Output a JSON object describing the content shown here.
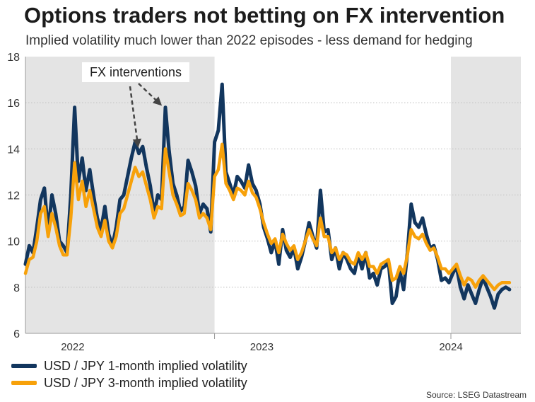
{
  "title": "Options traders not betting on FX intervention",
  "subtitle": "Implied volatility much lower than 2022 episodes - less demand for hedging",
  "source": "Source: LSEG Datastream",
  "colors": {
    "series1": "#12365e",
    "series2": "#f7a10a",
    "shade": "#e4e4e4",
    "grid": "#bdbdbd",
    "axis": "#999999",
    "annotation_arrow": "#444444"
  },
  "legend": [
    {
      "label": "USD / JPY 1-month implied volatility",
      "color": "#12365e"
    },
    {
      "label": "USD / JPY 3-month implied volatility",
      "color": "#f7a10a"
    }
  ],
  "chart_data": {
    "type": "line",
    "title": "Options traders not betting on FX intervention",
    "subtitle": "Implied volatility much lower than 2022 episodes - less demand for hedging",
    "xlabel": "",
    "ylabel": "",
    "ylim": [
      6,
      18
    ],
    "yticks": [
      "6",
      "8",
      "10",
      "12",
      "14",
      "16",
      "18"
    ],
    "xlim": [
      2021.75,
      2024.37
    ],
    "year_labels": [
      {
        "label": "2022",
        "x": 2022.0
      },
      {
        "label": "2023",
        "x": 2023.0
      },
      {
        "label": "2024",
        "x": 2024.0
      }
    ],
    "year_boundaries": [
      2022.75,
      2024.0
    ],
    "shaded_ranges": [
      [
        2021.75,
        2022.75
      ],
      [
        2024.0,
        2024.37
      ]
    ],
    "grid": true,
    "annotation": {
      "text": "FX interventions",
      "points": [
        {
          "x": 2022.345,
          "y": 14.0
        },
        {
          "x": 2022.465,
          "y": 15.8
        }
      ]
    },
    "series": [
      {
        "name": "USD / JPY 1-month implied volatility",
        "x": [
          2021.75,
          2021.77,
          2021.79,
          2021.81,
          2021.83,
          2021.85,
          2021.87,
          2021.89,
          2021.91,
          2021.93,
          2021.95,
          2021.97,
          2021.99,
          2022.01,
          2022.03,
          2022.05,
          2022.07,
          2022.09,
          2022.11,
          2022.13,
          2022.15,
          2022.17,
          2022.19,
          2022.21,
          2022.23,
          2022.25,
          2022.27,
          2022.29,
          2022.31,
          2022.33,
          2022.35,
          2022.37,
          2022.39,
          2022.41,
          2022.43,
          2022.45,
          2022.47,
          2022.49,
          2022.51,
          2022.53,
          2022.55,
          2022.57,
          2022.59,
          2022.61,
          2022.63,
          2022.65,
          2022.67,
          2022.69,
          2022.71,
          2022.73,
          2022.75,
          2022.77,
          2022.79,
          2022.81,
          2022.83,
          2022.85,
          2022.87,
          2022.89,
          2022.91,
          2022.93,
          2022.95,
          2022.97,
          2022.99,
          2023.01,
          2023.03,
          2023.05,
          2023.07,
          2023.09,
          2023.11,
          2023.13,
          2023.15,
          2023.17,
          2023.19,
          2023.21,
          2023.23,
          2023.25,
          2023.27,
          2023.29,
          2023.31,
          2023.33,
          2023.35,
          2023.37,
          2023.39,
          2023.41,
          2023.43,
          2023.45,
          2023.47,
          2023.49,
          2023.51,
          2023.53,
          2023.55,
          2023.57,
          2023.59,
          2023.61,
          2023.63,
          2023.65,
          2023.67,
          2023.69,
          2023.71,
          2023.73,
          2023.75,
          2023.77,
          2023.79,
          2023.81,
          2023.83,
          2023.85,
          2023.87,
          2023.89,
          2023.91,
          2023.93,
          2023.95,
          2023.97,
          2023.99,
          2024.01,
          2024.03,
          2024.05,
          2024.07,
          2024.09,
          2024.11,
          2024.13,
          2024.15,
          2024.17,
          2024.19,
          2024.21,
          2024.23,
          2024.25,
          2024.27,
          2024.29,
          2024.31
        ],
        "values": [
          9.0,
          9.8,
          9.5,
          10.6,
          11.8,
          12.3,
          10.4,
          12.0,
          11.2,
          10.0,
          9.8,
          9.5,
          12.0,
          15.8,
          12.6,
          13.6,
          12.2,
          13.1,
          12.0,
          11.0,
          10.5,
          11.5,
          10.3,
          9.8,
          10.6,
          11.8,
          12.0,
          12.8,
          13.6,
          14.3,
          13.8,
          14.1,
          13.2,
          12.4,
          11.2,
          12.0,
          11.8,
          15.8,
          13.9,
          12.5,
          12.0,
          11.3,
          11.5,
          13.5,
          13.0,
          12.4,
          11.2,
          11.6,
          11.4,
          10.4,
          14.3,
          14.8,
          16.8,
          13.0,
          12.5,
          12.0,
          12.8,
          12.6,
          12.3,
          13.3,
          12.5,
          12.2,
          11.6,
          10.6,
          10.1,
          9.5,
          10.0,
          9.0,
          10.5,
          9.6,
          9.3,
          9.7,
          8.8,
          9.3,
          10.0,
          10.8,
          10.2,
          9.7,
          12.2,
          10.4,
          10.5,
          9.2,
          9.7,
          8.8,
          9.5,
          9.2,
          8.8,
          8.6,
          9.4,
          8.8,
          9.5,
          8.4,
          8.6,
          8.1,
          8.8,
          8.9,
          9.1,
          7.3,
          7.6,
          8.7,
          7.9,
          9.5,
          11.6,
          10.8,
          10.6,
          11.0,
          10.3,
          9.7,
          9.8,
          9.2,
          8.3,
          8.4,
          8.2,
          8.6,
          8.9,
          8.0,
          7.5,
          8.1,
          7.7,
          7.3,
          7.9,
          8.4,
          8.0,
          7.6,
          7.1,
          7.7,
          7.9,
          8.0,
          7.9
        ],
        "color": "#12365e"
      },
      {
        "name": "USD / JPY 3-month implied volatility",
        "x": [
          2021.75,
          2021.77,
          2021.79,
          2021.81,
          2021.83,
          2021.85,
          2021.87,
          2021.89,
          2021.91,
          2021.93,
          2021.95,
          2021.97,
          2021.99,
          2022.01,
          2022.03,
          2022.05,
          2022.07,
          2022.09,
          2022.11,
          2022.13,
          2022.15,
          2022.17,
          2022.19,
          2022.21,
          2022.23,
          2022.25,
          2022.27,
          2022.29,
          2022.31,
          2022.33,
          2022.35,
          2022.37,
          2022.39,
          2022.41,
          2022.43,
          2022.45,
          2022.47,
          2022.49,
          2022.51,
          2022.53,
          2022.55,
          2022.57,
          2022.59,
          2022.61,
          2022.63,
          2022.65,
          2022.67,
          2022.69,
          2022.71,
          2022.73,
          2022.75,
          2022.77,
          2022.79,
          2022.81,
          2022.83,
          2022.85,
          2022.87,
          2022.89,
          2022.91,
          2022.93,
          2022.95,
          2022.97,
          2022.99,
          2023.01,
          2023.03,
          2023.05,
          2023.07,
          2023.09,
          2023.11,
          2023.13,
          2023.15,
          2023.17,
          2023.19,
          2023.21,
          2023.23,
          2023.25,
          2023.27,
          2023.29,
          2023.31,
          2023.33,
          2023.35,
          2023.37,
          2023.39,
          2023.41,
          2023.43,
          2023.45,
          2023.47,
          2023.49,
          2023.51,
          2023.53,
          2023.55,
          2023.57,
          2023.59,
          2023.61,
          2023.63,
          2023.65,
          2023.67,
          2023.69,
          2023.71,
          2023.73,
          2023.75,
          2023.77,
          2023.79,
          2023.81,
          2023.83,
          2023.85,
          2023.87,
          2023.89,
          2023.91,
          2023.93,
          2023.95,
          2023.97,
          2023.99,
          2024.01,
          2024.03,
          2024.05,
          2024.07,
          2024.09,
          2024.11,
          2024.13,
          2024.15,
          2024.17,
          2024.19,
          2024.21,
          2024.23,
          2024.25,
          2024.27,
          2024.29,
          2024.31
        ],
        "values": [
          8.6,
          9.2,
          9.3,
          10.0,
          11.2,
          11.5,
          10.2,
          11.2,
          10.6,
          9.8,
          9.4,
          9.4,
          11.0,
          13.4,
          11.8,
          12.6,
          11.5,
          12.2,
          11.4,
          10.6,
          10.2,
          10.9,
          10.0,
          9.7,
          10.2,
          11.2,
          11.4,
          12.0,
          12.6,
          13.2,
          12.8,
          13.0,
          12.4,
          11.8,
          11.0,
          11.5,
          11.4,
          14.0,
          13.0,
          12.0,
          11.6,
          11.1,
          11.2,
          12.5,
          12.2,
          11.8,
          11.0,
          11.2,
          11.0,
          10.5,
          12.8,
          13.1,
          14.2,
          12.5,
          12.2,
          11.8,
          12.3,
          12.2,
          12.0,
          12.6,
          12.1,
          11.9,
          11.4,
          10.8,
          10.3,
          9.9,
          10.1,
          9.5,
          10.3,
          9.9,
          9.6,
          9.8,
          9.2,
          9.5,
          10.0,
          10.5,
          10.1,
          9.8,
          11.0,
          10.2,
          10.2,
          9.5,
          9.7,
          9.2,
          9.5,
          9.4,
          9.1,
          9.0,
          9.5,
          9.2,
          9.5,
          8.9,
          8.9,
          8.6,
          9.0,
          9.1,
          9.2,
          8.3,
          8.4,
          8.9,
          8.6,
          9.4,
          10.5,
          10.2,
          10.1,
          10.3,
          9.9,
          9.6,
          9.7,
          9.3,
          8.8,
          8.8,
          8.6,
          8.8,
          9.0,
          8.5,
          8.1,
          8.4,
          8.3,
          8.0,
          8.3,
          8.5,
          8.3,
          8.1,
          7.9,
          8.1,
          8.2,
          8.2,
          8.2
        ],
        "color": "#f7a10a"
      }
    ]
  }
}
